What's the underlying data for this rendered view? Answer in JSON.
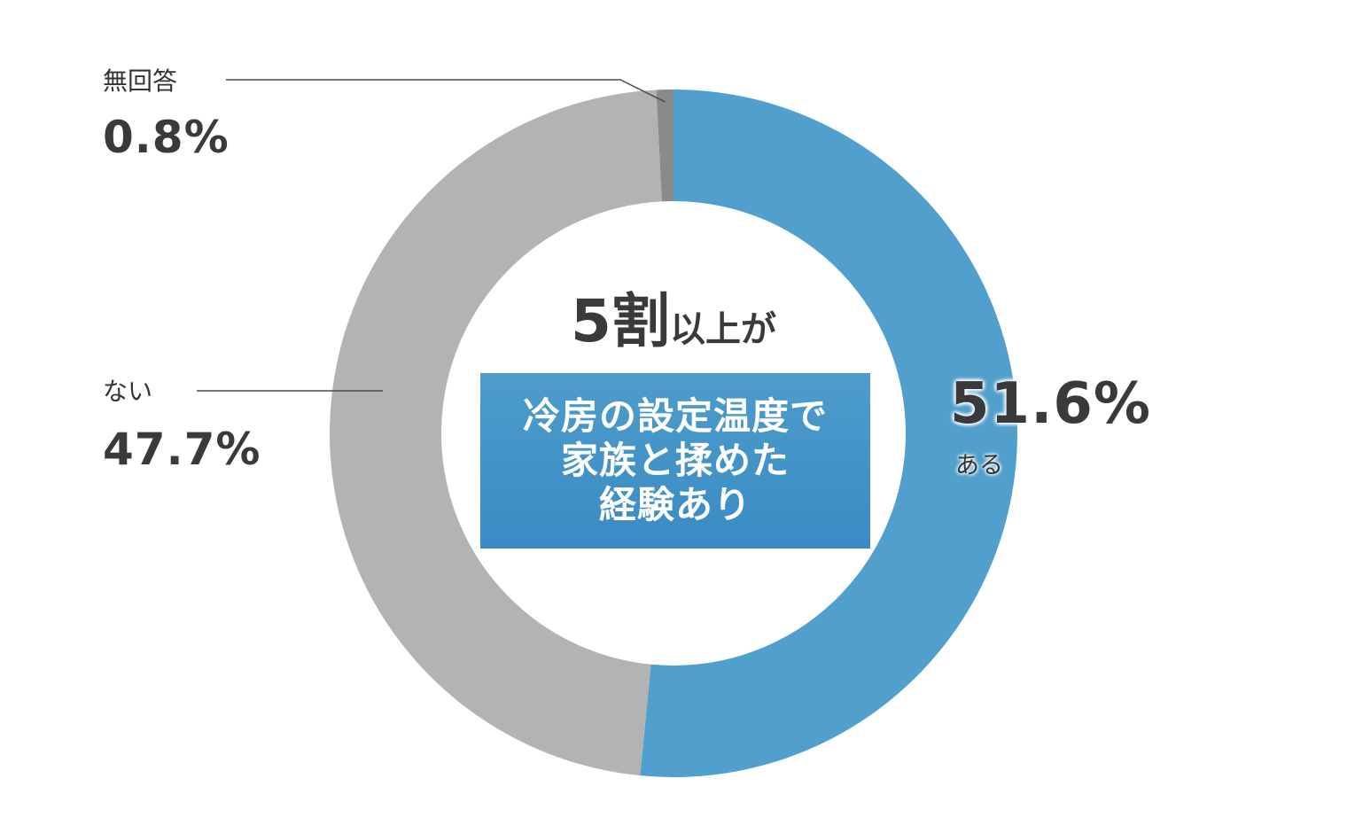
{
  "colors": {
    "yes": "#519fcd",
    "no": "#b3b3b3",
    "no_answer": "#8a8a8a",
    "leader_line": "#4a4a4a",
    "text": "#3a3a3a",
    "banner": "#3f8fc6"
  },
  "headline": {
    "big": "5割",
    "small": "以上が"
  },
  "banner": {
    "text": "冷房の設定温度で\n家族と揉めた\n経験あり"
  },
  "chart_data": {
    "type": "pie",
    "donut": true,
    "start": "top",
    "direction": "clockwise",
    "slices": [
      {
        "name": "ある",
        "label": "51.6%",
        "value": 51.6
      },
      {
        "name": "ない",
        "label": "47.7%",
        "value": 47.7
      },
      {
        "name": "無回答",
        "label": "0.8%",
        "value": 0.8
      }
    ]
  }
}
